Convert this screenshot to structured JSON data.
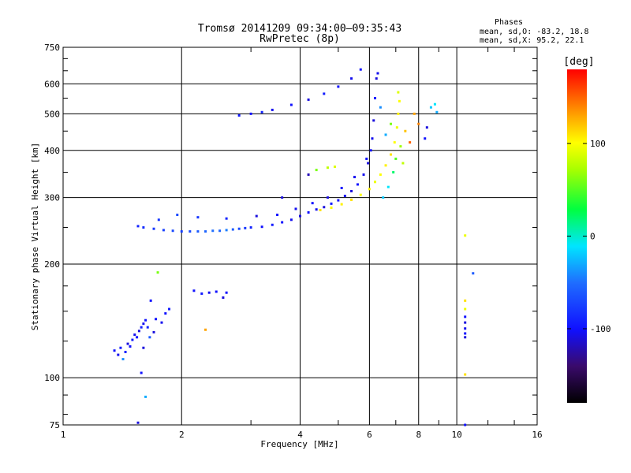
{
  "header": {
    "title_line1": "Tromsø 20141209 09:34:00–09:35:43",
    "title_line2": "RwPretec (8p)"
  },
  "stats": {
    "heading": "Phases",
    "line_o": "mean, sd,O: -83.2, 18.8",
    "line_x": "mean, sd,X:  95.2, 22.1"
  },
  "colorbar": {
    "unit_label": "[deg]",
    "ticks": [
      {
        "value": 100,
        "label": "100"
      },
      {
        "value": 0,
        "label": "0"
      },
      {
        "value": -100,
        "label": "-100"
      }
    ],
    "range": [
      -180,
      180
    ]
  },
  "chart_data": {
    "type": "scatter",
    "title": "Tromsø 20141209 09:34:00–09:35:43",
    "subtitle": "RwPretec (8p)",
    "xlabel": "Frequency [MHz]",
    "ylabel": "Stationary phase Virtual Height [km]",
    "x_scale": "log",
    "y_scale": "log",
    "xlim": [
      1,
      16
    ],
    "ylim": [
      75,
      750
    ],
    "x_ticks": [
      {
        "value": 1,
        "label": "1"
      },
      {
        "value": 2,
        "label": "2"
      },
      {
        "value": 4,
        "label": "4"
      },
      {
        "value": 6,
        "label": "6"
      },
      {
        "value": 8,
        "label": "8"
      },
      {
        "value": 10,
        "label": "10"
      },
      {
        "value": 16,
        "label": "16"
      }
    ],
    "y_ticks": [
      {
        "value": 75,
        "label": "75"
      },
      {
        "value": 100,
        "label": "100"
      },
      {
        "value": 200,
        "label": "200"
      },
      {
        "value": 300,
        "label": "300"
      },
      {
        "value": 400,
        "label": "400"
      },
      {
        "value": 500,
        "label": "500"
      },
      {
        "value": 600,
        "label": "600"
      },
      {
        "value": 750,
        "label": "750"
      }
    ],
    "grid": true,
    "color_by": "phase (deg)",
    "color_range": [
      -180,
      180
    ],
    "series": [
      {
        "name": "",
        "points": [
          [
            1.35,
            118,
            -100
          ],
          [
            1.38,
            115,
            -105
          ],
          [
            1.4,
            120,
            -95
          ],
          [
            1.42,
            112,
            -40
          ],
          [
            1.44,
            117,
            -90
          ],
          [
            1.46,
            123,
            -110
          ],
          [
            1.48,
            121,
            -100
          ],
          [
            1.5,
            126,
            -95
          ],
          [
            1.52,
            130,
            -105
          ],
          [
            1.54,
            128,
            -100
          ],
          [
            1.56,
            133,
            -110
          ],
          [
            1.58,
            136,
            -95
          ],
          [
            1.6,
            139,
            -105
          ],
          [
            1.62,
            142,
            -100
          ],
          [
            1.64,
            136,
            -90
          ],
          [
            1.66,
            128,
            -60
          ],
          [
            1.67,
            160,
            -100
          ],
          [
            1.7,
            132,
            -110
          ],
          [
            1.72,
            143,
            -100
          ],
          [
            1.74,
            190,
            60
          ],
          [
            1.78,
            140,
            -105
          ],
          [
            1.82,
            148,
            -100
          ],
          [
            1.86,
            152,
            -95
          ],
          [
            1.6,
            120,
            -110
          ],
          [
            1.58,
            103,
            -100
          ],
          [
            1.62,
            89,
            -30
          ],
          [
            1.55,
            76,
            -110
          ],
          [
            2.15,
            170,
            -100
          ],
          [
            2.25,
            167,
            -95
          ],
          [
            2.35,
            168,
            -105
          ],
          [
            2.45,
            169,
            -100
          ],
          [
            2.55,
            163,
            -110
          ],
          [
            2.6,
            168,
            -100
          ],
          [
            2.3,
            134,
            130
          ],
          [
            1.55,
            252,
            -90
          ],
          [
            1.6,
            250,
            -85
          ],
          [
            1.7,
            248,
            -80
          ],
          [
            1.8,
            246,
            -75
          ],
          [
            1.9,
            245,
            -70
          ],
          [
            2.0,
            244,
            -75
          ],
          [
            2.1,
            244,
            -70
          ],
          [
            2.2,
            244,
            -60
          ],
          [
            2.3,
            244,
            -55
          ],
          [
            2.4,
            245,
            -50
          ],
          [
            2.5,
            245,
            -55
          ],
          [
            2.6,
            246,
            -45
          ],
          [
            2.7,
            247,
            -60
          ],
          [
            2.8,
            248,
            -70
          ],
          [
            2.9,
            249,
            -80
          ],
          [
            3.0,
            250,
            -90
          ],
          [
            3.2,
            251,
            -100
          ],
          [
            3.4,
            254,
            -95
          ],
          [
            3.6,
            258,
            -100
          ],
          [
            3.8,
            262,
            -105
          ],
          [
            4.0,
            268,
            -110
          ],
          [
            4.2,
            274,
            -100
          ],
          [
            4.4,
            279,
            -105
          ],
          [
            4.6,
            283,
            -110
          ],
          [
            4.8,
            289,
            -95
          ],
          [
            5.0,
            295,
            -100
          ],
          [
            5.2,
            303,
            -105
          ],
          [
            5.4,
            312,
            -110
          ],
          [
            5.6,
            325,
            -100
          ],
          [
            5.8,
            345,
            -105
          ],
          [
            5.95,
            370,
            -110
          ],
          [
            6.05,
            400,
            -100
          ],
          [
            6.1,
            430,
            -105
          ],
          [
            6.15,
            480,
            -110
          ],
          [
            6.2,
            550,
            -100
          ],
          [
            6.25,
            620,
            -110
          ],
          [
            6.3,
            640,
            -105
          ],
          [
            1.75,
            262,
            -80
          ],
          [
            1.95,
            270,
            -70
          ],
          [
            2.2,
            266,
            -80
          ],
          [
            2.6,
            264,
            -90
          ],
          [
            3.1,
            268,
            -110
          ],
          [
            3.5,
            270,
            -100
          ],
          [
            3.9,
            280,
            -105
          ],
          [
            4.3,
            290,
            -100
          ],
          [
            4.7,
            300,
            -110
          ],
          [
            5.1,
            318,
            -100
          ],
          [
            5.5,
            340,
            -105
          ],
          [
            5.9,
            380,
            -100
          ],
          [
            4.5,
            278,
            110
          ],
          [
            4.8,
            282,
            100
          ],
          [
            5.1,
            288,
            105
          ],
          [
            5.4,
            296,
            110
          ],
          [
            5.7,
            305,
            100
          ],
          [
            6.0,
            316,
            105
          ],
          [
            6.2,
            330,
            95
          ],
          [
            6.4,
            345,
            100
          ],
          [
            6.6,
            365,
            105
          ],
          [
            6.8,
            390,
            110
          ],
          [
            6.95,
            420,
            100
          ],
          [
            7.05,
            460,
            95
          ],
          [
            7.1,
            500,
            105
          ],
          [
            7.15,
            540,
            100
          ],
          [
            7.1,
            570,
            90
          ],
          [
            6.5,
            300,
            -20
          ],
          [
            6.7,
            320,
            -10
          ],
          [
            6.9,
            350,
            20
          ],
          [
            7.0,
            380,
            50
          ],
          [
            6.6,
            440,
            -30
          ],
          [
            6.4,
            520,
            -40
          ],
          [
            6.8,
            470,
            60
          ],
          [
            7.2,
            410,
            70
          ],
          [
            7.3,
            370,
            80
          ],
          [
            7.4,
            450,
            120
          ],
          [
            7.6,
            420,
            150
          ],
          [
            7.8,
            500,
            130
          ],
          [
            8.0,
            470,
            140
          ],
          [
            3.0,
            500,
            -100
          ],
          [
            3.4,
            512,
            -105
          ],
          [
            3.8,
            528,
            -100
          ],
          [
            4.2,
            545,
            -110
          ],
          [
            4.6,
            565,
            -95
          ],
          [
            5.0,
            590,
            -100
          ],
          [
            5.4,
            620,
            -105
          ],
          [
            5.7,
            655,
            -100
          ],
          [
            2.8,
            495,
            -95
          ],
          [
            3.2,
            505,
            -90
          ],
          [
            4.7,
            360,
            80
          ],
          [
            4.9,
            362,
            90
          ],
          [
            4.4,
            355,
            60
          ],
          [
            4.2,
            345,
            -120
          ],
          [
            3.6,
            300,
            -110
          ],
          [
            8.4,
            460,
            -110
          ],
          [
            8.6,
            520,
            -20
          ],
          [
            8.8,
            530,
            -10
          ],
          [
            8.9,
            505,
            -30
          ],
          [
            8.3,
            430,
            -100
          ],
          [
            10.5,
            238,
            95
          ],
          [
            10.5,
            160,
            110
          ],
          [
            10.5,
            152,
            95
          ],
          [
            10.5,
            145,
            -100
          ],
          [
            10.5,
            140,
            -110
          ],
          [
            10.5,
            135,
            -105
          ],
          [
            10.5,
            131,
            -100
          ],
          [
            10.5,
            128,
            -110
          ],
          [
            10.5,
            102,
            110
          ],
          [
            10.5,
            75,
            -100
          ],
          [
            11.0,
            189,
            -60
          ]
        ]
      }
    ]
  }
}
